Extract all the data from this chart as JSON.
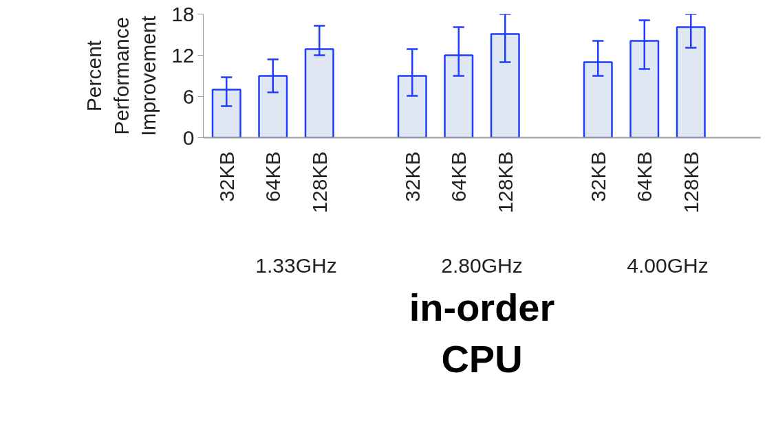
{
  "chart_data": {
    "type": "bar",
    "xlabel": "in-order CPU",
    "ylabel": "Percent Performance Improvement",
    "categories": [
      "32KB",
      "64KB",
      "128KB",
      null,
      "32KB",
      "64KB",
      "128KB",
      null,
      "32KB",
      "64KB",
      "128KB"
    ],
    "values": [
      7.0,
      9.0,
      12.9,
      null,
      9.0,
      12.0,
      15.1,
      null,
      11.0,
      14.1,
      16.1
    ],
    "errors": [
      [
        4.6,
        8.8
      ],
      [
        6.6,
        11.4
      ],
      [
        12.0,
        16.3
      ],
      null,
      [
        6.1,
        12.9
      ],
      [
        9.0,
        16.1
      ],
      [
        11.0,
        18.0
      ],
      null,
      [
        9.0,
        14.1
      ],
      [
        10.0,
        17.1
      ],
      [
        13.1,
        18.0
      ]
    ],
    "color": "#dfe7f2",
    "annotations": [
      "1.33GHz",
      "2.80GHz",
      "4.00GHz"
    ],
    "ylim": [
      0,
      18
    ],
    "yticks": [
      0,
      6,
      12,
      18
    ],
    "grid": false
  }
}
